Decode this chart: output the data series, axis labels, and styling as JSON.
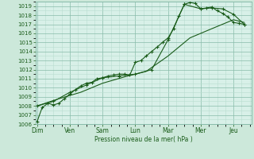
{
  "background_color": "#cce8da",
  "plot_bg_color": "#d8f0e8",
  "grid_color_minor": "#b8ddd0",
  "grid_color_major": "#88bbaa",
  "line_color": "#1a5c1a",
  "xlabel": "Pression niveau de la mer( hPa )",
  "ylim": [
    1006,
    1019.5
  ],
  "yticks": [
    1006,
    1007,
    1008,
    1009,
    1010,
    1011,
    1012,
    1013,
    1014,
    1015,
    1016,
    1017,
    1018,
    1019
  ],
  "day_labels": [
    "Dim",
    "Ven",
    "Sam",
    "Lun",
    "Mar",
    "Mer",
    "Jeu"
  ],
  "day_positions": [
    0,
    1,
    2,
    3,
    4,
    5,
    6
  ],
  "xlim": [
    -0.05,
    6.55
  ],
  "line1_x": [
    0.0,
    0.15,
    0.33,
    0.5,
    0.67,
    0.83,
    1.0,
    1.17,
    1.33,
    1.5,
    1.67,
    1.83,
    2.0,
    2.17,
    2.33,
    2.5,
    2.67,
    2.83,
    3.0,
    3.17,
    3.33,
    3.5,
    3.67,
    3.83,
    4.0,
    4.17,
    4.33,
    4.5,
    4.67,
    4.83,
    5.0,
    5.17,
    5.33,
    5.5,
    5.67,
    5.83,
    6.0,
    6.17,
    6.33
  ],
  "line1_y": [
    1006.3,
    1007.8,
    1008.3,
    1008.1,
    1008.3,
    1008.8,
    1009.3,
    1009.8,
    1010.2,
    1010.5,
    1010.6,
    1011.0,
    1011.1,
    1011.3,
    1011.4,
    1011.5,
    1011.5,
    1011.4,
    1012.8,
    1013.0,
    1013.5,
    1014.0,
    1014.5,
    1015.0,
    1015.5,
    1016.5,
    1017.9,
    1019.2,
    1019.4,
    1019.3,
    1018.7,
    1018.8,
    1018.9,
    1018.5,
    1018.2,
    1017.8,
    1017.2,
    1017.1,
    1017.0
  ],
  "line2_x": [
    0.0,
    0.5,
    1.0,
    1.5,
    2.0,
    2.5,
    3.0,
    3.5,
    4.0,
    4.5,
    5.0,
    5.33,
    5.67,
    6.0,
    6.33
  ],
  "line2_y": [
    1008.0,
    1008.5,
    1009.5,
    1010.3,
    1011.1,
    1011.3,
    1011.5,
    1012.0,
    1015.3,
    1019.2,
    1018.7,
    1018.8,
    1018.7,
    1018.1,
    1017.0
  ],
  "line3_x": [
    0.0,
    0.67,
    1.33,
    2.0,
    2.67,
    3.33,
    4.0,
    4.67,
    5.33,
    6.0,
    6.33
  ],
  "line3_y": [
    1008.0,
    1008.8,
    1009.5,
    1010.5,
    1011.2,
    1011.8,
    1013.5,
    1015.5,
    1016.5,
    1017.5,
    1017.2
  ]
}
